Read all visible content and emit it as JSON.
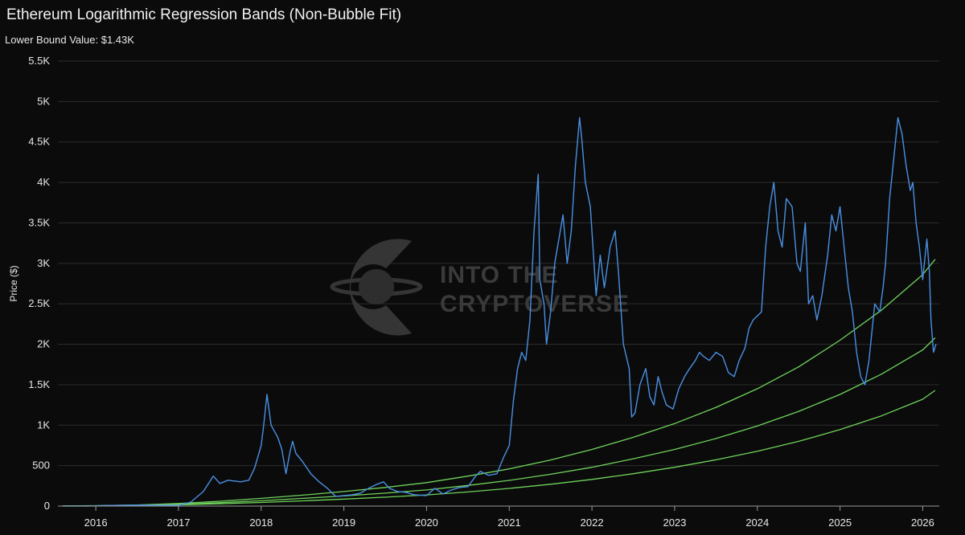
{
  "chart_data": {
    "type": "line",
    "title": "Ethereum Logarithmic Regression Bands (Non-Bubble Fit)",
    "subtitle": "Lower Bound Value: $1.43K",
    "xlabel": "",
    "ylabel": "Price ($)",
    "xlim": [
      2015.6,
      2026.2
    ],
    "ylim": [
      0,
      5500
    ],
    "x_ticks": [
      2016,
      2017,
      2018,
      2019,
      2020,
      2021,
      2022,
      2023,
      2024,
      2025,
      2026
    ],
    "x_tick_labels": [
      "2016",
      "2017",
      "2018",
      "2019",
      "2020",
      "2021",
      "2022",
      "2023",
      "2024",
      "2025",
      "2026"
    ],
    "y_ticks": [
      0,
      500,
      1000,
      1500,
      2000,
      2500,
      3000,
      3500,
      4000,
      4500,
      5000,
      5500
    ],
    "y_tick_labels": [
      "0",
      "500",
      "1K",
      "1.5K",
      "2K",
      "2.5K",
      "3K",
      "3.5K",
      "4K",
      "4.5K",
      "5K",
      "5.5K"
    ],
    "grid": true,
    "watermark": "INTO THE CRYPTOVERSE",
    "series": [
      {
        "color": "#4a90e2",
        "x": [
          2015.6,
          2015.9,
          2016.2,
          2016.45,
          2016.8,
          2017.0,
          2017.15,
          2017.3,
          2017.42,
          2017.5,
          2017.6,
          2017.75,
          2017.85,
          2017.92,
          2018.0,
          2018.03,
          2018.07,
          2018.12,
          2018.2,
          2018.25,
          2018.3,
          2018.35,
          2018.38,
          2018.42,
          2018.5,
          2018.6,
          2018.7,
          2018.8,
          2018.9,
          2019.0,
          2019.1,
          2019.2,
          2019.3,
          2019.4,
          2019.48,
          2019.55,
          2019.65,
          2019.75,
          2019.85,
          2020.0,
          2020.1,
          2020.2,
          2020.3,
          2020.4,
          2020.5,
          2020.6,
          2020.65,
          2020.75,
          2020.85,
          2020.93,
          2021.0,
          2021.05,
          2021.1,
          2021.15,
          2021.2,
          2021.25,
          2021.3,
          2021.35,
          2021.37,
          2021.42,
          2021.45,
          2021.5,
          2021.55,
          2021.6,
          2021.65,
          2021.7,
          2021.75,
          2021.8,
          2021.85,
          2021.88,
          2021.92,
          2021.98,
          2022.05,
          2022.1,
          2022.15,
          2022.22,
          2022.28,
          2022.32,
          2022.38,
          2022.45,
          2022.48,
          2022.52,
          2022.58,
          2022.65,
          2022.7,
          2022.75,
          2022.8,
          2022.85,
          2022.9,
          2022.98,
          2023.05,
          2023.12,
          2023.18,
          2023.25,
          2023.3,
          2023.35,
          2023.42,
          2023.5,
          2023.58,
          2023.65,
          2023.72,
          2023.78,
          2023.85,
          2023.9,
          2023.95,
          2024.05,
          2024.1,
          2024.15,
          2024.2,
          2024.25,
          2024.3,
          2024.35,
          2024.42,
          2024.48,
          2024.52,
          2024.58,
          2024.62,
          2024.67,
          2024.72,
          2024.78,
          2024.85,
          2024.9,
          2024.95,
          2025.0,
          2025.05,
          2025.1,
          2025.15,
          2025.2,
          2025.25,
          2025.3,
          2025.35,
          2025.42,
          2025.48,
          2025.52,
          2025.55,
          2025.6,
          2025.63,
          2025.66,
          2025.7,
          2025.75,
          2025.8,
          2025.85,
          2025.88,
          2025.92,
          2025.96,
          2026.0,
          2026.05,
          2026.08,
          2026.1,
          2026.13,
          2026.16
        ],
        "y": [
          1,
          1,
          8,
          12,
          10,
          9,
          50,
          180,
          370,
          280,
          320,
          300,
          320,
          470,
          750,
          1000,
          1380,
          1000,
          850,
          700,
          400,
          680,
          800,
          650,
          550,
          400,
          300,
          220,
          120,
          130,
          140,
          160,
          220,
          270,
          300,
          220,
          180,
          170,
          140,
          130,
          220,
          150,
          200,
          230,
          240,
          380,
          430,
          380,
          400,
          600,
          750,
          1300,
          1700,
          1900,
          1800,
          2300,
          3400,
          4100,
          2800,
          2500,
          2000,
          2400,
          3000,
          3300,
          3600,
          3000,
          3400,
          4200,
          4800,
          4500,
          4000,
          3700,
          2600,
          3100,
          2700,
          3200,
          3400,
          2900,
          2000,
          1700,
          1100,
          1150,
          1500,
          1700,
          1350,
          1250,
          1600,
          1400,
          1250,
          1200,
          1450,
          1600,
          1700,
          1800,
          1900,
          1850,
          1800,
          1900,
          1850,
          1650,
          1600,
          1800,
          1950,
          2200,
          2300,
          2400,
          3200,
          3700,
          4000,
          3400,
          3200,
          3800,
          3700,
          3000,
          2900,
          3500,
          2500,
          2600,
          2300,
          2600,
          3100,
          3600,
          3400,
          3700,
          3200,
          2700,
          2400,
          1900,
          1600,
          1500,
          1800,
          2500,
          2400,
          2700,
          3000,
          3800,
          4100,
          4400,
          4800,
          4600,
          4200,
          3900,
          4000,
          3500,
          3200,
          2800,
          3300,
          2900,
          2300,
          1900,
          2000
        ]
      },
      {
        "color": "#6fd35a",
        "x": [
          2015.6,
          2016.0,
          2016.5,
          2017.0,
          2017.5,
          2018.0,
          2018.5,
          2019.0,
          2019.5,
          2020.0,
          2020.5,
          2021.0,
          2021.5,
          2022.0,
          2022.5,
          2023.0,
          2023.5,
          2024.0,
          2024.5,
          2025.0,
          2025.5,
          2026.0,
          2026.15
        ],
        "y": [
          2,
          5,
          14,
          32,
          60,
          95,
          135,
          180,
          230,
          290,
          370,
          460,
          570,
          700,
          850,
          1020,
          1220,
          1450,
          1720,
          2050,
          2420,
          2860,
          3050
        ]
      },
      {
        "color": "#6fd35a",
        "x": [
          2015.6,
          2016.0,
          2016.5,
          2017.0,
          2017.5,
          2018.0,
          2018.5,
          2019.0,
          2019.5,
          2020.0,
          2020.5,
          2021.0,
          2021.5,
          2022.0,
          2022.5,
          2023.0,
          2023.5,
          2024.0,
          2024.5,
          2025.0,
          2025.5,
          2026.0,
          2026.15
        ],
        "y": [
          1,
          3,
          10,
          22,
          42,
          66,
          95,
          125,
          160,
          200,
          255,
          318,
          393,
          480,
          585,
          700,
          835,
          990,
          1170,
          1380,
          1630,
          1930,
          2080
        ]
      },
      {
        "color": "#6fd35a",
        "x": [
          2015.6,
          2016.0,
          2016.5,
          2017.0,
          2017.5,
          2018.0,
          2018.5,
          2019.0,
          2019.5,
          2020.0,
          2020.5,
          2021.0,
          2021.5,
          2022.0,
          2022.5,
          2023.0,
          2023.5,
          2024.0,
          2024.5,
          2025.0,
          2025.5,
          2026.0,
          2026.15
        ],
        "y": [
          1,
          2,
          7,
          15,
          29,
          45,
          65,
          86,
          110,
          138,
          175,
          218,
          270,
          330,
          400,
          480,
          572,
          678,
          800,
          945,
          1115,
          1320,
          1430
        ]
      }
    ]
  }
}
